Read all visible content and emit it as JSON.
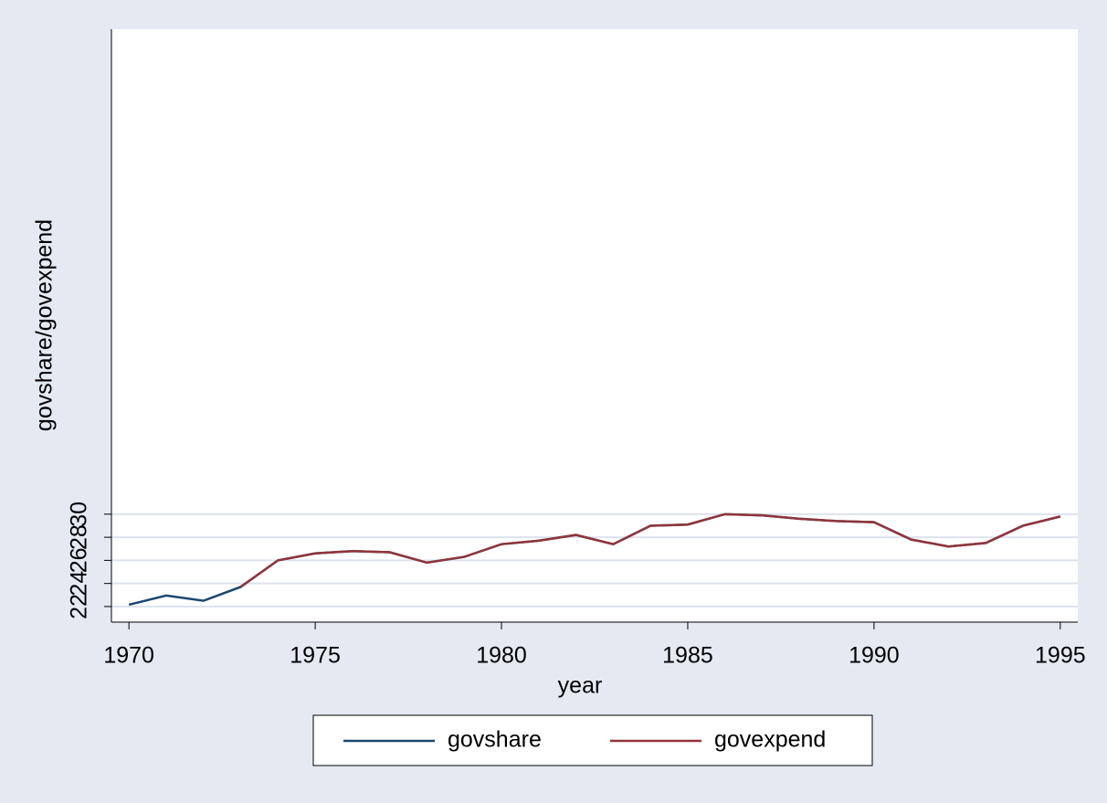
{
  "chart_data": {
    "type": "line",
    "x": [
      1970,
      1971,
      1972,
      1973,
      1974,
      1975,
      1976,
      1977,
      1978,
      1979,
      1980,
      1981,
      1982,
      1983,
      1984,
      1985,
      1986,
      1987,
      1988,
      1989,
      1990,
      1991,
      1992,
      1993,
      1994,
      1995
    ],
    "series": [
      {
        "name": "govshare",
        "color": "#1a476f",
        "values": [
          22.16,
          22.95,
          22.5,
          23.7,
          26.0,
          26.6,
          26.8,
          26.7,
          25.8,
          26.3,
          27.4,
          27.7,
          28.2,
          27.4,
          29.0,
          29.1,
          30.0,
          29.9,
          29.6,
          29.4,
          29.3,
          27.8,
          27.2,
          27.5,
          29.0,
          29.8
        ]
      },
      {
        "name": "govexpend",
        "color": "#90353b",
        "values": [
          null,
          null,
          null,
          23.7,
          26.0,
          26.6,
          26.8,
          26.7,
          25.8,
          26.3,
          27.4,
          27.7,
          28.2,
          27.4,
          29.0,
          29.1,
          30.0,
          29.9,
          29.6,
          29.4,
          29.3,
          27.8,
          27.2,
          27.5,
          29.0,
          29.8
        ]
      }
    ],
    "xlabel": "year",
    "ylabel": "govshare/govexpend",
    "xlim": [
      1969.53,
      1995.47
    ],
    "xticks": [
      1970,
      1975,
      1980,
      1985,
      1990,
      1995
    ],
    "ylim": [
      20.65,
      72
    ],
    "yticks": [
      22,
      24,
      26,
      28,
      30
    ],
    "grid": true,
    "legend": "bottom"
  }
}
